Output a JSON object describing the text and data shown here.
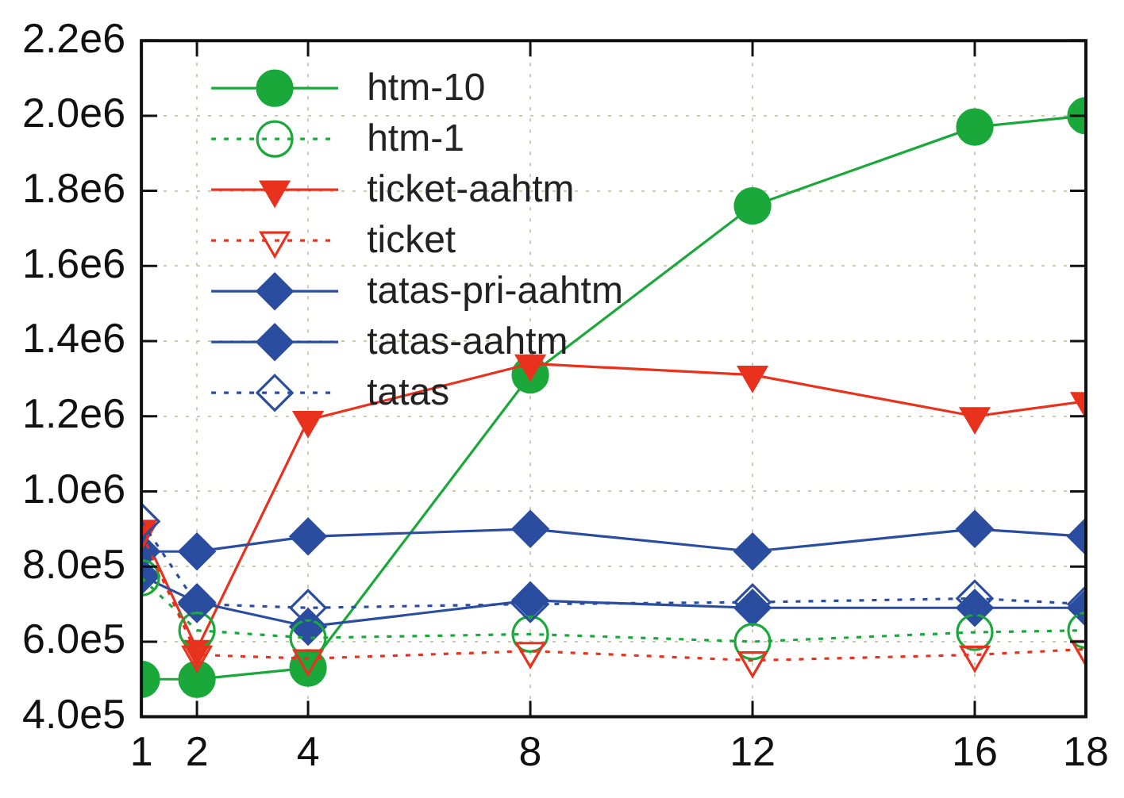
{
  "chart_data": {
    "type": "line",
    "x": [
      1,
      2,
      4,
      8,
      12,
      16,
      18
    ],
    "xlim": [
      1,
      18
    ],
    "xticks": [
      1,
      2,
      4,
      8,
      12,
      16,
      18
    ],
    "ylim": [
      400000,
      2200000
    ],
    "yticks": [
      {
        "value": 400000,
        "label": "4.0e5"
      },
      {
        "value": 600000,
        "label": "6.0e5"
      },
      {
        "value": 800000,
        "label": "8.0e5"
      },
      {
        "value": 1000000,
        "label": "1.0e6"
      },
      {
        "value": 1200000,
        "label": "1.2e6"
      },
      {
        "value": 1400000,
        "label": "1.4e6"
      },
      {
        "value": 1600000,
        "label": "1.6e6"
      },
      {
        "value": 1800000,
        "label": "1.8e6"
      },
      {
        "value": 2000000,
        "label": "2.0e6"
      },
      {
        "value": 2200000,
        "label": "2.2e6"
      }
    ],
    "grid": true,
    "legend": "top left",
    "series": [
      {
        "name": "htm-10",
        "color": "#1aa83a",
        "marker": "circle",
        "line_style": "solid",
        "values": [
          500000,
          500000,
          530000,
          1310000,
          1760000,
          1970000,
          2000000
        ]
      },
      {
        "name": "htm-1",
        "color": "#1aa83a",
        "marker": "circle",
        "line_style": "dotted",
        "values": [
          770000,
          630000,
          610000,
          620000,
          600000,
          625000,
          630000
        ]
      },
      {
        "name": "ticket-aahtm",
        "color": "#e8321e",
        "marker": "triangle",
        "line_style": "solid",
        "values": [
          900000,
          580000,
          1190000,
          1340000,
          1310000,
          1200000,
          1240000
        ]
      },
      {
        "name": "ticket",
        "color": "#e8321e",
        "marker": "triangle",
        "line_style": "dotted",
        "values": [
          890000,
          565000,
          555000,
          575000,
          550000,
          565000,
          580000
        ]
      },
      {
        "name": "tatas-pri-aahtm",
        "color": "#2a4da0",
        "marker": "diamond",
        "line_style": "solid",
        "values": [
          840000,
          840000,
          880000,
          900000,
          840000,
          900000,
          880000
        ]
      },
      {
        "name": "tatas-aahtm",
        "color": "#2a4da0",
        "marker": "diamond",
        "line_style": "solid",
        "values": [
          775000,
          705000,
          640000,
          710000,
          690000,
          690000,
          690000
        ]
      },
      {
        "name": "tatas",
        "color": "#2a4da0",
        "marker": "diamond",
        "line_style": "dotted",
        "values": [
          920000,
          700000,
          690000,
          700000,
          705000,
          715000,
          700000
        ]
      }
    ]
  }
}
